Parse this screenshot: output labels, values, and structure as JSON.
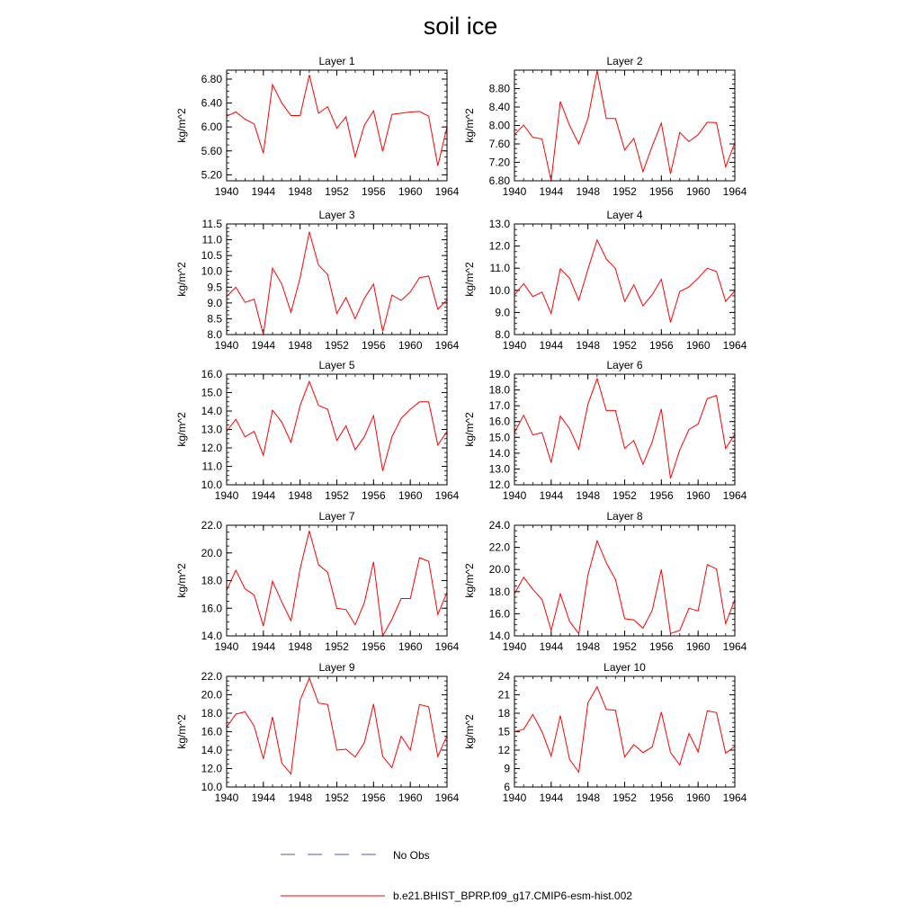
{
  "title": "soil ice",
  "colors": {
    "model_line": "#ff0000",
    "obs_line": "#4a55c8",
    "axis": "#000000"
  },
  "legend": {
    "obs_label": "No Obs",
    "model_label": "b.e21.BHIST_BPRP.f09_g17.CMIP6-esm-hist.002"
  },
  "chart_data": [
    {
      "type": "line",
      "title": "Layer 1",
      "ylabel": "kg/m^2",
      "xlim": [
        1940,
        1964
      ],
      "ylim": [
        5.1,
        6.95
      ],
      "xticks": [
        "1940",
        "1944",
        "1948",
        "1952",
        "1956",
        "1960",
        "1964"
      ],
      "yticks": [
        "5.20",
        "5.60",
        "6.00",
        "6.40",
        "6.80"
      ],
      "x": [
        1940,
        1941,
        1942,
        1943,
        1944,
        1945,
        1946,
        1947,
        1948,
        1949,
        1950,
        1951,
        1952,
        1953,
        1954,
        1955,
        1956,
        1957,
        1958,
        1959,
        1960,
        1961,
        1962,
        1963,
        1964
      ],
      "series": [
        {
          "name": "b.e21.BHIST_BPRP.f09_g17.CMIP6-esm-hist.002",
          "values": [
            6.18,
            6.25,
            6.13,
            6.05,
            5.56,
            6.71,
            6.4,
            6.19,
            6.19,
            6.87,
            6.23,
            6.34,
            5.98,
            6.17,
            5.5,
            6.03,
            6.27,
            5.59,
            6.21,
            6.23,
            6.25,
            6.26,
            6.18,
            5.35,
            6.0
          ]
        }
      ]
    },
    {
      "type": "line",
      "title": "Layer 2",
      "ylabel": "kg/m^2",
      "xlim": [
        1940,
        1964
      ],
      "ylim": [
        6.8,
        9.2
      ],
      "xticks": [
        "1940",
        "1944",
        "1948",
        "1952",
        "1956",
        "1960",
        "1964"
      ],
      "yticks": [
        "6.80",
        "7.20",
        "7.60",
        "8.00",
        "8.40",
        "8.80"
      ],
      "x": [
        1940,
        1941,
        1942,
        1943,
        1944,
        1945,
        1946,
        1947,
        1948,
        1949,
        1950,
        1951,
        1952,
        1953,
        1954,
        1955,
        1956,
        1957,
        1958,
        1959,
        1960,
        1961,
        1962,
        1963,
        1964
      ],
      "series": [
        {
          "name": "b.e21.BHIST_BPRP.f09_g17.CMIP6-esm-hist.002",
          "values": [
            7.8,
            8.01,
            7.74,
            7.71,
            6.8,
            8.52,
            8.0,
            7.6,
            8.15,
            9.19,
            8.15,
            8.15,
            7.47,
            7.72,
            7.0,
            7.55,
            8.05,
            6.95,
            7.85,
            7.65,
            7.8,
            8.07,
            8.06,
            7.1,
            7.63
          ]
        }
      ]
    },
    {
      "type": "line",
      "title": "Layer 3",
      "ylabel": "kg/m^2",
      "xlim": [
        1940,
        1964
      ],
      "ylim": [
        8.0,
        11.5
      ],
      "xticks": [
        "1940",
        "1944",
        "1948",
        "1952",
        "1956",
        "1960",
        "1964"
      ],
      "yticks": [
        "8.0",
        "8.5",
        "9.0",
        "9.5",
        "10.0",
        "10.5",
        "11.0",
        "11.5"
      ],
      "x": [
        1940,
        1941,
        1942,
        1943,
        1944,
        1945,
        1946,
        1947,
        1948,
        1949,
        1950,
        1951,
        1952,
        1953,
        1954,
        1955,
        1956,
        1957,
        1958,
        1959,
        1960,
        1961,
        1962,
        1963,
        1964
      ],
      "series": [
        {
          "name": "b.e21.BHIST_BPRP.f09_g17.CMIP6-esm-hist.002",
          "values": [
            9.2,
            9.5,
            9.02,
            9.12,
            8.0,
            10.1,
            9.6,
            8.7,
            9.8,
            11.25,
            10.2,
            9.9,
            8.67,
            9.17,
            8.5,
            9.15,
            9.6,
            8.1,
            9.25,
            9.08,
            9.35,
            9.8,
            9.85,
            8.8,
            9.1
          ]
        }
      ]
    },
    {
      "type": "line",
      "title": "Layer 4",
      "ylabel": "kg/m^2",
      "xlim": [
        1940,
        1964
      ],
      "ylim": [
        8.0,
        13.0
      ],
      "xticks": [
        "1940",
        "1944",
        "1948",
        "1952",
        "1956",
        "1960",
        "1964"
      ],
      "yticks": [
        "8.0",
        "9.0",
        "10.0",
        "11.0",
        "12.0",
        "13.0"
      ],
      "x": [
        1940,
        1941,
        1942,
        1943,
        1944,
        1945,
        1946,
        1947,
        1948,
        1949,
        1950,
        1951,
        1952,
        1953,
        1954,
        1955,
        1956,
        1957,
        1958,
        1959,
        1960,
        1961,
        1962,
        1963,
        1964
      ],
      "series": [
        {
          "name": "b.e21.BHIST_BPRP.f09_g17.CMIP6-esm-hist.002",
          "values": [
            9.8,
            10.3,
            9.72,
            9.92,
            8.95,
            10.97,
            10.55,
            9.55,
            10.95,
            12.28,
            11.42,
            10.98,
            9.5,
            10.25,
            9.3,
            9.8,
            10.5,
            8.55,
            9.95,
            10.15,
            10.55,
            11.0,
            10.85,
            9.5,
            9.97
          ]
        }
      ]
    },
    {
      "type": "line",
      "title": "Layer 5",
      "ylabel": "kg/m^2",
      "xlim": [
        1940,
        1964
      ],
      "ylim": [
        10.0,
        16.0
      ],
      "xticks": [
        "1940",
        "1944",
        "1948",
        "1952",
        "1956",
        "1960",
        "1964"
      ],
      "yticks": [
        "10.0",
        "11.0",
        "12.0",
        "13.0",
        "14.0",
        "15.0",
        "16.0"
      ],
      "x": [
        1940,
        1941,
        1942,
        1943,
        1944,
        1945,
        1946,
        1947,
        1948,
        1949,
        1950,
        1951,
        1952,
        1953,
        1954,
        1955,
        1956,
        1957,
        1958,
        1959,
        1960,
        1961,
        1962,
        1963,
        1964
      ],
      "series": [
        {
          "name": "b.e21.BHIST_BPRP.f09_g17.CMIP6-esm-hist.002",
          "values": [
            12.9,
            13.55,
            12.6,
            12.9,
            11.6,
            14.05,
            13.4,
            12.3,
            14.3,
            15.6,
            14.3,
            14.1,
            12.4,
            13.2,
            11.9,
            12.6,
            13.75,
            10.75,
            12.6,
            13.6,
            14.1,
            14.5,
            14.5,
            12.15,
            12.9
          ]
        }
      ]
    },
    {
      "type": "line",
      "title": "Layer 6",
      "ylabel": "kg/m^2",
      "xlim": [
        1940,
        1964
      ],
      "ylim": [
        12.0,
        19.0
      ],
      "xticks": [
        "1940",
        "1944",
        "1948",
        "1952",
        "1956",
        "1960",
        "1964"
      ],
      "yticks": [
        "12.0",
        "13.0",
        "14.0",
        "15.0",
        "16.0",
        "17.0",
        "18.0",
        "19.0"
      ],
      "x": [
        1940,
        1941,
        1942,
        1943,
        1944,
        1945,
        1946,
        1947,
        1948,
        1949,
        1950,
        1951,
        1952,
        1953,
        1954,
        1955,
        1956,
        1957,
        1958,
        1959,
        1960,
        1961,
        1962,
        1963,
        1964
      ],
      "series": [
        {
          "name": "b.e21.BHIST_BPRP.f09_g17.CMIP6-esm-hist.002",
          "values": [
            15.3,
            16.4,
            15.15,
            15.3,
            13.4,
            16.35,
            15.55,
            14.25,
            17.1,
            18.72,
            16.7,
            16.7,
            14.3,
            14.8,
            13.3,
            14.7,
            16.8,
            12.4,
            14.2,
            15.5,
            15.85,
            17.45,
            17.65,
            14.3,
            15.2
          ]
        }
      ]
    },
    {
      "type": "line",
      "title": "Layer 7",
      "ylabel": "kg/m^2",
      "xlim": [
        1940,
        1964
      ],
      "ylim": [
        14.0,
        22.0
      ],
      "xticks": [
        "1940",
        "1944",
        "1948",
        "1952",
        "1956",
        "1960",
        "1964"
      ],
      "yticks": [
        "14.0",
        "16.0",
        "18.0",
        "20.0",
        "22.0"
      ],
      "x": [
        1940,
        1941,
        1942,
        1943,
        1944,
        1945,
        1946,
        1947,
        1948,
        1949,
        1950,
        1951,
        1952,
        1953,
        1954,
        1955,
        1956,
        1957,
        1958,
        1959,
        1960,
        1961,
        1962,
        1963,
        1964
      ],
      "series": [
        {
          "name": "b.e21.BHIST_BPRP.f09_g17.CMIP6-esm-hist.002",
          "values": [
            17.3,
            18.75,
            17.4,
            16.95,
            14.7,
            17.95,
            16.45,
            15.1,
            18.85,
            21.6,
            19.15,
            18.6,
            16.0,
            15.9,
            14.8,
            16.4,
            19.35,
            14.0,
            15.2,
            16.7,
            16.7,
            19.65,
            19.4,
            15.55,
            17.15
          ]
        }
      ]
    },
    {
      "type": "line",
      "title": "Layer 8",
      "ylabel": "kg/m^2",
      "xlim": [
        1940,
        1964
      ],
      "ylim": [
        14.0,
        24.0
      ],
      "xticks": [
        "1940",
        "1944",
        "1948",
        "1952",
        "1956",
        "1960",
        "1964"
      ],
      "yticks": [
        "14.0",
        "16.0",
        "18.0",
        "20.0",
        "22.0",
        "24.0"
      ],
      "x": [
        1940,
        1941,
        1942,
        1943,
        1944,
        1945,
        1946,
        1947,
        1948,
        1949,
        1950,
        1951,
        1952,
        1953,
        1954,
        1955,
        1956,
        1957,
        1958,
        1959,
        1960,
        1961,
        1962,
        1963,
        1964
      ],
      "series": [
        {
          "name": "b.e21.BHIST_BPRP.f09_g17.CMIP6-esm-hist.002",
          "values": [
            17.8,
            19.3,
            18.2,
            17.3,
            14.5,
            17.8,
            15.3,
            14.2,
            19.5,
            22.6,
            20.6,
            19.1,
            15.55,
            15.45,
            14.7,
            16.3,
            20.0,
            14.2,
            14.5,
            16.5,
            16.25,
            20.45,
            20.05,
            15.1,
            17.3
          ]
        }
      ]
    },
    {
      "type": "line",
      "title": "Layer 9",
      "ylabel": "kg/m^2",
      "xlim": [
        1940,
        1964
      ],
      "ylim": [
        10.0,
        22.0
      ],
      "xticks": [
        "1940",
        "1944",
        "1948",
        "1952",
        "1956",
        "1960",
        "1964"
      ],
      "yticks": [
        "10.0",
        "12.0",
        "14.0",
        "16.0",
        "18.0",
        "20.0",
        "22.0"
      ],
      "x": [
        1940,
        1941,
        1942,
        1943,
        1944,
        1945,
        1946,
        1947,
        1948,
        1949,
        1950,
        1951,
        1952,
        1953,
        1954,
        1955,
        1956,
        1957,
        1958,
        1959,
        1960,
        1961,
        1962,
        1963,
        1964
      ],
      "series": [
        {
          "name": "b.e21.BHIST_BPRP.f09_g17.CMIP6-esm-hist.002",
          "values": [
            16.5,
            17.9,
            18.15,
            16.6,
            13.05,
            17.6,
            12.6,
            11.4,
            19.4,
            21.8,
            19.1,
            18.95,
            14.0,
            14.1,
            13.25,
            14.8,
            19.0,
            13.3,
            12.1,
            15.5,
            14.0,
            18.95,
            18.7,
            13.3,
            15.6
          ]
        }
      ]
    },
    {
      "type": "line",
      "title": "Layer 10",
      "ylabel": "kg/m^2",
      "xlim": [
        1940,
        1964
      ],
      "ylim": [
        6,
        24
      ],
      "xticks": [
        "1940",
        "1944",
        "1948",
        "1952",
        "1956",
        "1960",
        "1964"
      ],
      "yticks": [
        "6",
        "9",
        "12",
        "15",
        "18",
        "21",
        "24"
      ],
      "x": [
        1940,
        1941,
        1942,
        1943,
        1944,
        1945,
        1946,
        1947,
        1948,
        1949,
        1950,
        1951,
        1952,
        1953,
        1954,
        1955,
        1956,
        1957,
        1958,
        1959,
        1960,
        1961,
        1962,
        1963,
        1964
      ],
      "series": [
        {
          "name": "b.e21.BHIST_BPRP.f09_g17.CMIP6-esm-hist.002",
          "values": [
            15.0,
            15.4,
            17.8,
            15.0,
            11.0,
            17.6,
            10.5,
            8.4,
            19.7,
            22.3,
            18.6,
            18.5,
            10.9,
            12.9,
            11.6,
            12.5,
            18.2,
            11.6,
            9.6,
            14.7,
            11.7,
            18.4,
            18.1,
            11.5,
            12.6
          ]
        }
      ]
    }
  ]
}
